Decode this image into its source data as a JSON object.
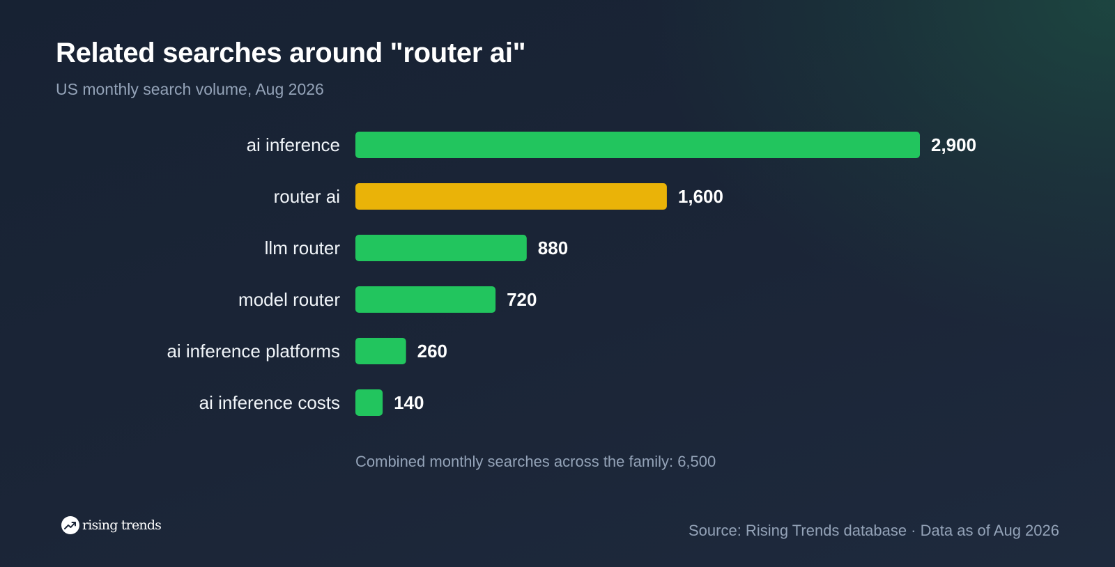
{
  "title": "Related searches around \"router ai\"",
  "subtitle": "US monthly search volume, Aug 2026",
  "total_note": "Combined monthly searches across the family: 6,500",
  "brand": {
    "name": "rising trends",
    "icon": "trending-up-icon"
  },
  "source": "Source: Rising Trends database · Data as of Aug 2026",
  "colors": {
    "default_bar": "#22c55e",
    "highlight_bar": "#eab308",
    "muted_text": "#94a3b8"
  },
  "chart_data": {
    "type": "bar",
    "orientation": "horizontal",
    "title": "Related searches around \"router ai\"",
    "subtitle": "US monthly search volume, Aug 2026",
    "categories": [
      "ai inference",
      "router ai",
      "llm router",
      "model router",
      "ai inference platforms",
      "ai inference costs"
    ],
    "values": [
      2900,
      1600,
      880,
      720,
      260,
      140
    ],
    "value_labels": [
      "2,900",
      "1,600",
      "880",
      "720",
      "260",
      "140"
    ],
    "highlight": "router ai",
    "xlim": [
      0,
      2900
    ],
    "grid": false,
    "legend": "none"
  }
}
